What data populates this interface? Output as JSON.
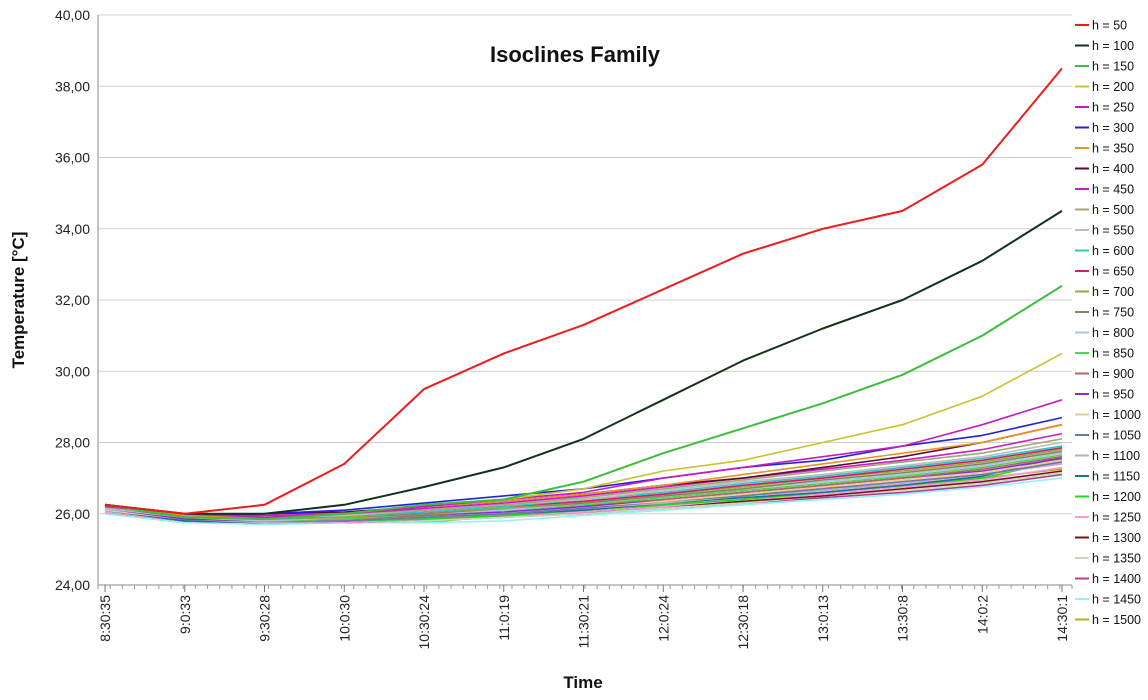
{
  "chart_data": {
    "type": "line",
    "title": "Isoclines Family",
    "xlabel": "Time",
    "ylabel": "Temperature [°C]",
    "ylim": [
      24,
      40
    ],
    "yticks": [
      "24,00",
      "26,00",
      "28,00",
      "30,00",
      "32,00",
      "34,00",
      "36,00",
      "38,00",
      "40,00"
    ],
    "xticks": [
      "8:30:35",
      "9:0:33",
      "9:30:28",
      "10:0:30",
      "10:30:24",
      "11:0:19",
      "11:30:21",
      "12:0:24",
      "12:30:18",
      "13:0:13",
      "13:30:8",
      "14:0:2",
      "14:30:1"
    ],
    "x": [
      "8:30:35",
      "9:0:33",
      "9:30:28",
      "10:0:30",
      "10:30:24",
      "11:0:19",
      "11:30:21",
      "12:0:24",
      "12:30:18",
      "13:0:13",
      "13:30:8",
      "14:0:2",
      "14:30:1"
    ],
    "grid": "horizontal",
    "legend_position": "right",
    "series": [
      {
        "name": "h = 50",
        "color": "#ee1c1c",
        "values": [
          26.25,
          26.0,
          26.25,
          27.4,
          29.5,
          30.5,
          31.3,
          32.3,
          33.3,
          34.0,
          34.5,
          35.8,
          38.5
        ]
      },
      {
        "name": "h = 100",
        "color": "#10331a",
        "values": [
          26.25,
          26.0,
          26.0,
          26.25,
          26.75,
          27.3,
          28.1,
          29.2,
          30.3,
          31.2,
          32.0,
          33.1,
          34.5
        ]
      },
      {
        "name": "h = 150",
        "color": "#3bbf3b",
        "values": [
          26.25,
          25.9,
          25.85,
          26.0,
          26.25,
          26.4,
          26.9,
          27.7,
          28.4,
          29.1,
          29.9,
          31.0,
          32.4
        ]
      },
      {
        "name": "h = 200",
        "color": "#c9c22a",
        "values": [
          26.25,
          25.9,
          25.85,
          26.0,
          26.25,
          26.4,
          26.7,
          27.2,
          27.5,
          28.0,
          28.5,
          29.3,
          30.5
        ]
      },
      {
        "name": "h = 250",
        "color": "#c21cc2",
        "values": [
          26.25,
          26.0,
          25.9,
          26.0,
          26.2,
          26.4,
          26.6,
          27.0,
          27.3,
          27.6,
          27.9,
          28.5,
          29.2
        ]
      },
      {
        "name": "h = 300",
        "color": "#2222dd",
        "values": [
          26.25,
          26.0,
          26.0,
          26.1,
          26.3,
          26.5,
          26.7,
          27.0,
          27.3,
          27.5,
          27.9,
          28.2,
          28.7
        ]
      },
      {
        "name": "h = 350",
        "color": "#e8922a",
        "values": [
          26.25,
          25.95,
          25.9,
          26.0,
          26.2,
          26.35,
          26.55,
          26.8,
          27.1,
          27.4,
          27.7,
          28.0,
          28.5
        ]
      },
      {
        "name": "h = 400",
        "color": "#5a0d34",
        "values": [
          26.25,
          26.0,
          26.0,
          26.05,
          26.2,
          26.35,
          26.55,
          26.8,
          27.0,
          27.3,
          27.6,
          28.0,
          28.5
        ]
      },
      {
        "name": "h = 450",
        "color": "#c71ec7",
        "values": [
          26.2,
          26.0,
          25.95,
          26.0,
          26.15,
          26.3,
          26.5,
          26.75,
          27.0,
          27.25,
          27.5,
          27.8,
          28.25
        ]
      },
      {
        "name": "h = 500",
        "color": "#a5a575",
        "values": [
          26.2,
          26.0,
          25.9,
          26.0,
          26.1,
          26.25,
          26.45,
          26.7,
          26.95,
          27.2,
          27.45,
          27.7,
          28.1
        ]
      },
      {
        "name": "h = 550",
        "color": "#bdbdbd",
        "values": [
          26.2,
          25.95,
          25.9,
          25.95,
          26.1,
          26.25,
          26.4,
          26.65,
          26.9,
          27.1,
          27.35,
          27.6,
          28.0
        ]
      },
      {
        "name": "h = 600",
        "color": "#30c4c4",
        "values": [
          26.2,
          25.95,
          25.85,
          25.95,
          26.05,
          26.2,
          26.4,
          26.6,
          26.85,
          27.05,
          27.3,
          27.55,
          27.9
        ]
      },
      {
        "name": "h = 650",
        "color": "#d21c6e",
        "values": [
          26.2,
          25.95,
          25.85,
          25.95,
          26.05,
          26.2,
          26.35,
          26.55,
          26.8,
          27.0,
          27.25,
          27.5,
          27.85
        ]
      },
      {
        "name": "h = 700",
        "color": "#8fae3c",
        "values": [
          26.2,
          25.95,
          25.85,
          25.9,
          26.05,
          26.15,
          26.35,
          26.55,
          26.75,
          27.0,
          27.2,
          27.45,
          27.8
        ]
      },
      {
        "name": "h = 750",
        "color": "#8c8060",
        "values": [
          26.2,
          25.9,
          25.85,
          25.9,
          26.0,
          26.15,
          26.3,
          26.5,
          26.7,
          26.95,
          27.15,
          27.4,
          27.75
        ]
      },
      {
        "name": "h = 800",
        "color": "#a9c3e8",
        "values": [
          26.15,
          25.9,
          25.8,
          25.9,
          26.0,
          26.1,
          26.3,
          26.5,
          26.7,
          26.9,
          27.1,
          27.35,
          27.7
        ]
      },
      {
        "name": "h = 850",
        "color": "#55d255",
        "values": [
          26.15,
          25.9,
          25.8,
          25.85,
          26.0,
          26.1,
          26.25,
          26.45,
          26.65,
          26.85,
          27.05,
          27.3,
          27.65
        ]
      },
      {
        "name": "h = 900",
        "color": "#a86c64",
        "values": [
          26.15,
          25.9,
          25.8,
          25.85,
          25.95,
          26.1,
          26.25,
          26.4,
          26.6,
          26.8,
          27.0,
          27.25,
          27.6
        ]
      },
      {
        "name": "h = 950",
        "color": "#8b2ad6",
        "values": [
          26.15,
          25.85,
          25.8,
          25.85,
          25.95,
          26.05,
          26.2,
          26.4,
          26.6,
          26.8,
          27.0,
          27.2,
          27.55
        ]
      },
      {
        "name": "h = 1000",
        "color": "#f2c98a",
        "values": [
          26.1,
          25.85,
          25.8,
          25.85,
          25.95,
          26.05,
          26.2,
          26.35,
          26.55,
          26.75,
          26.95,
          27.15,
          27.5
        ]
      },
      {
        "name": "h = 1050",
        "color": "#6a7aa8",
        "values": [
          26.1,
          25.85,
          25.8,
          25.8,
          25.9,
          26.0,
          26.15,
          26.35,
          26.5,
          26.7,
          26.9,
          27.1,
          27.45
        ]
      },
      {
        "name": "h = 1100",
        "color": "#c2a6c2",
        "values": [
          26.1,
          25.85,
          25.75,
          25.8,
          25.9,
          26.0,
          26.15,
          26.3,
          26.5,
          26.65,
          26.85,
          27.1,
          27.4
        ]
      },
      {
        "name": "h = 1150",
        "color": "#1f6f9a",
        "values": [
          26.1,
          25.8,
          25.75,
          25.8,
          25.9,
          26.0,
          26.1,
          26.3,
          26.45,
          26.6,
          26.8,
          27.05,
          27.6
        ]
      },
      {
        "name": "h = 1200",
        "color": "#1ed91e",
        "values": [
          26.1,
          25.8,
          25.75,
          25.8,
          25.85,
          25.95,
          26.1,
          26.25,
          26.4,
          26.6,
          26.8,
          27.0,
          27.5
        ]
      },
      {
        "name": "h = 1250",
        "color": "#f59ae0",
        "values": [
          26.05,
          25.8,
          25.75,
          25.75,
          25.85,
          25.95,
          26.05,
          26.2,
          26.4,
          26.55,
          26.75,
          26.95,
          27.3
        ]
      },
      {
        "name": "h = 1300",
        "color": "#7a1414",
        "values": [
          26.05,
          25.8,
          25.75,
          25.75,
          25.85,
          25.95,
          26.05,
          26.2,
          26.35,
          26.5,
          26.7,
          26.9,
          27.2
        ]
      },
      {
        "name": "h = 1350",
        "color": "#c8dcb4",
        "values": [
          26.05,
          25.8,
          25.75,
          25.75,
          25.8,
          25.9,
          26.0,
          26.15,
          26.3,
          26.5,
          26.65,
          26.85,
          27.15
        ]
      },
      {
        "name": "h = 1400",
        "color": "#b43ca0",
        "values": [
          26.05,
          25.8,
          25.75,
          25.75,
          25.8,
          25.9,
          26.0,
          26.15,
          26.3,
          26.45,
          26.6,
          26.8,
          27.1
        ]
      },
      {
        "name": "h = 1450",
        "color": "#8ef5f5",
        "values": [
          26.0,
          25.75,
          25.7,
          25.75,
          25.75,
          25.8,
          25.95,
          26.1,
          26.25,
          26.4,
          26.55,
          26.75,
          27.0
        ]
      },
      {
        "name": "h = 1500",
        "color": "#b5ac20",
        "values": [
          26.0,
          25.75,
          25.75,
          25.75,
          25.75,
          25.95,
          26.0,
          26.25,
          26.5,
          26.75,
          26.75,
          27.0,
          27.25
        ]
      }
    ]
  }
}
